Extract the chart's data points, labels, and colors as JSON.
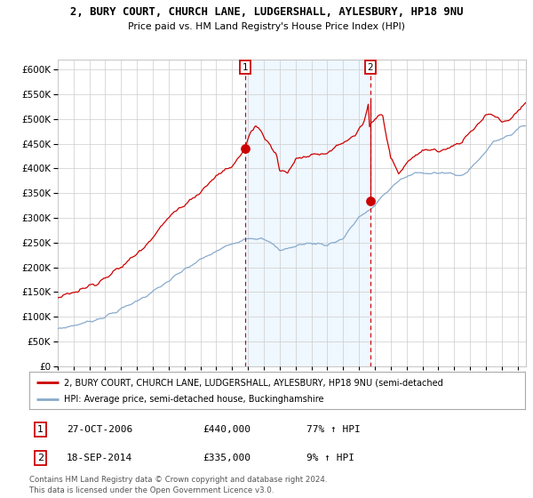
{
  "title": "2, BURY COURT, CHURCH LANE, LUDGERSHALL, AYLESBURY, HP18 9NU",
  "subtitle": "Price paid vs. HM Land Registry's House Price Index (HPI)",
  "sale1_date": "27-OCT-2006",
  "sale1_price": 440000,
  "sale1_label": "1",
  "sale1_year": 2006.82,
  "sale2_date": "18-SEP-2014",
  "sale2_price": 335000,
  "sale2_label": "2",
  "sale2_year": 2014.71,
  "legend_property": "2, BURY COURT, CHURCH LANE, LUDGERSHALL, AYLESBURY, HP18 9NU (semi-detached",
  "legend_hpi": "HPI: Average price, semi-detached house, Buckinghamshire",
  "table_row1_num": "1",
  "table_row1_date": "27-OCT-2006",
  "table_row1_price": "£440,000",
  "table_row1_hpi": "77% ↑ HPI",
  "table_row2_num": "2",
  "table_row2_date": "18-SEP-2014",
  "table_row2_price": "£335,000",
  "table_row2_hpi": "9% ↑ HPI",
  "footnote1": "Contains HM Land Registry data © Crown copyright and database right 2024.",
  "footnote2": "This data is licensed under the Open Government Licence v3.0.",
  "red_color": "#cc0000",
  "blue_color": "#88aacc",
  "blue_fill": "#ddeeff",
  "chart_bg": "#ffffff",
  "fig_bg": "#ffffff",
  "grid_color": "#cccccc",
  "ylim_max": 620000,
  "xlim_start": 1995.0,
  "xlim_end": 2024.5
}
